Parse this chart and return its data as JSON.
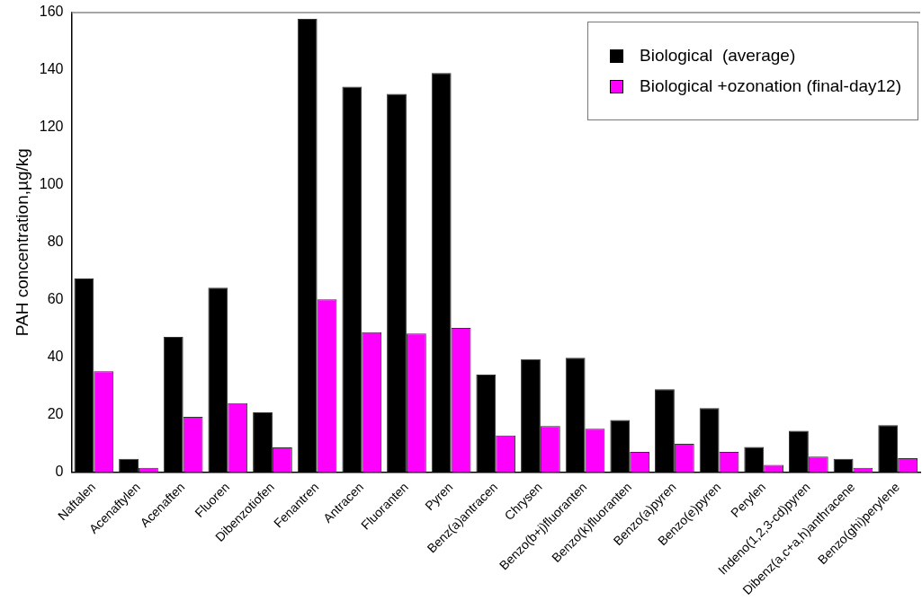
{
  "chart_data": {
    "type": "bar",
    "ylabel": "PAH concentration,µg/kg",
    "categories": [
      "Naftalen",
      "Acenaftylen",
      "Acenaften",
      "Fluoren",
      "Dibenzotiofen",
      "Fenantren",
      "Antracen",
      "Fluoranten",
      "Pyren",
      "Benz(a)antracen",
      "Chrysen",
      "Benzo(b+j)fluoranten",
      "Benzo(k)fluoranten",
      "Benzo(a)pyren",
      "Benzo(e)pyren",
      "Perylen",
      "Indeno(1,2,3-cd)pyren",
      "Dibenz(a,c+a,h)anthracene",
      "Benzo(ghi)perylene"
    ],
    "series": [
      {
        "name": "Biological  (average)",
        "color": "#000000",
        "values": [
          67.4,
          4.6,
          47.1,
          64.2,
          20.8,
          157.8,
          134.2,
          131.7,
          139,
          33.9,
          39.3,
          39.8,
          18.1,
          28.8,
          22.3,
          8.7,
          14.4,
          4.6,
          16.3
        ]
      },
      {
        "name": "Biological +ozonation (final-day12)",
        "color": "#ff00ff",
        "values": [
          35.1,
          1.5,
          19.2,
          24,
          8.6,
          60.1,
          48.7,
          48.2,
          50.2,
          12.7,
          16,
          15.1,
          7,
          9.8,
          7,
          2.5,
          5.4,
          1.5,
          4.8
        ]
      }
    ],
    "ylim": [
      0,
      160
    ],
    "yticks": [
      0,
      20,
      40,
      60,
      80,
      100,
      120,
      140,
      160
    ],
    "grid": false,
    "legend": "top right"
  }
}
